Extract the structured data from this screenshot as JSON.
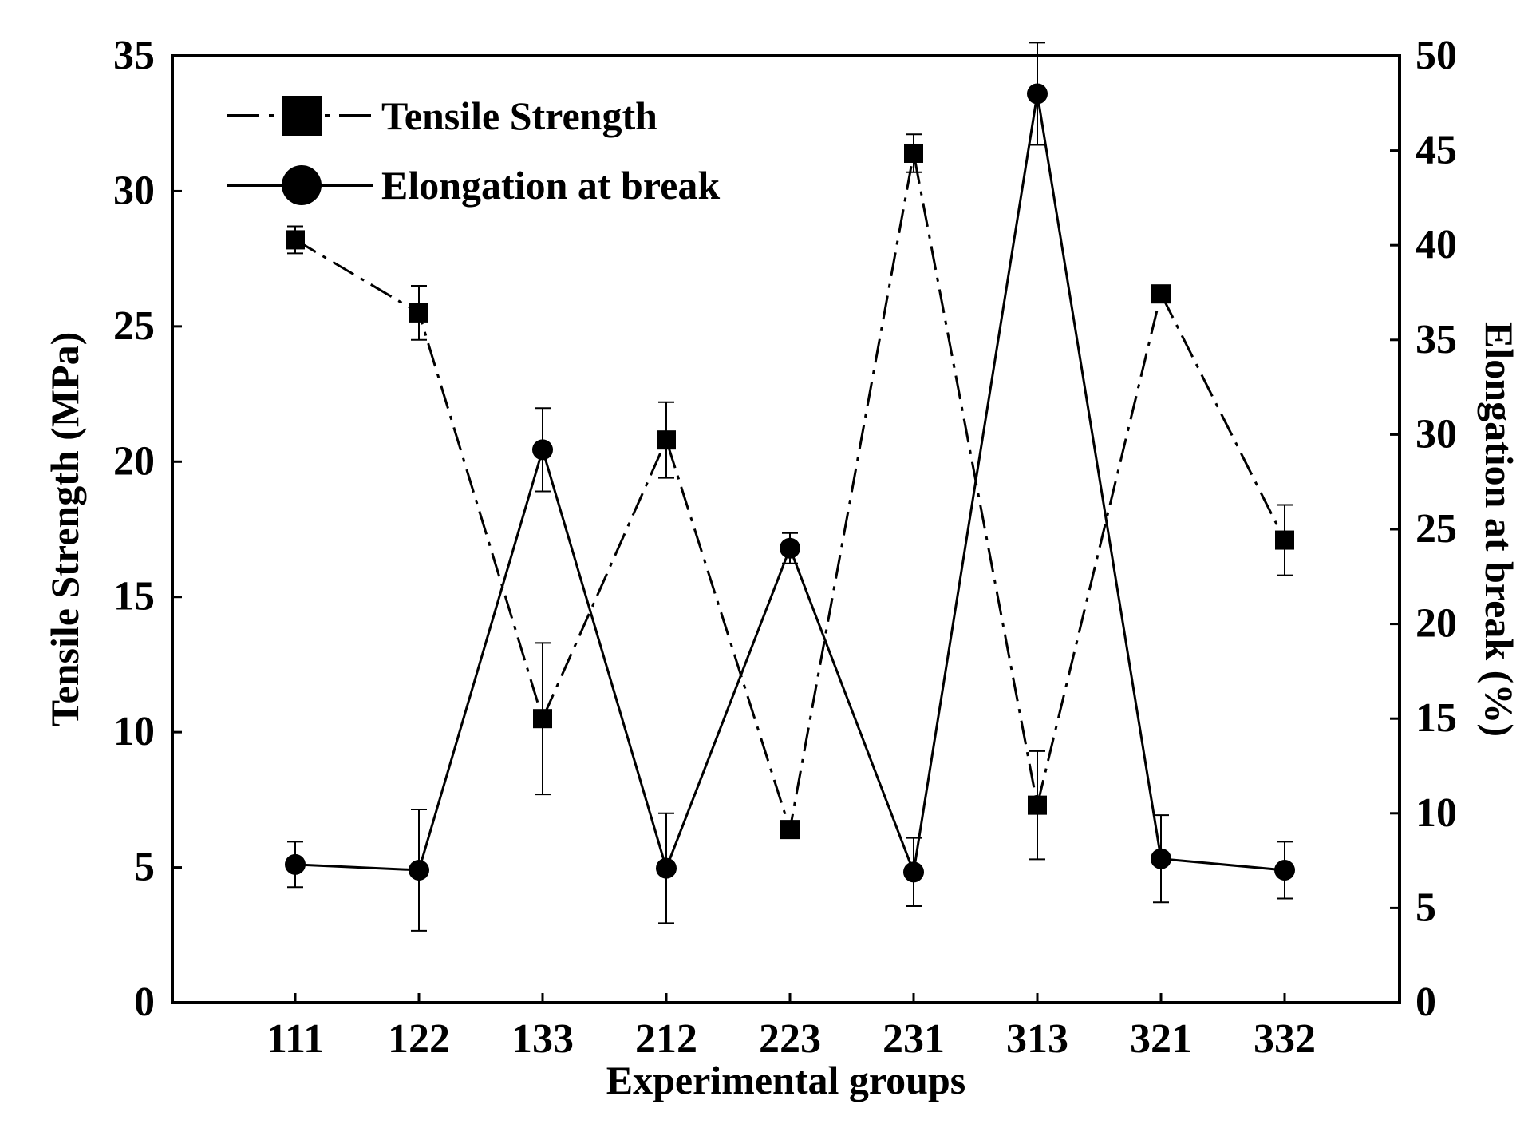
{
  "chart_data": {
    "type": "line",
    "categories": [
      "111",
      "122",
      "133",
      "212",
      "223",
      "231",
      "313",
      "321",
      "332"
    ],
    "xlabel": "Experimental groups",
    "ylabel": "Tensile Strength (MPa)",
    "y2label": "Elongation at break (%)",
    "ylim": [
      0,
      35
    ],
    "y2lim": [
      0,
      50
    ],
    "yticks": [
      0,
      5,
      10,
      15,
      20,
      25,
      30,
      35
    ],
    "y2ticks": [
      0,
      5,
      10,
      15,
      20,
      25,
      30,
      35,
      40,
      45,
      50
    ],
    "legend_position": "top-left",
    "grid": false,
    "series": [
      {
        "name": "Tensile Strength",
        "axis": "left",
        "marker": "square",
        "line_style": "dash-dot",
        "values": [
          28.2,
          25.5,
          10.5,
          20.8,
          6.4,
          31.4,
          7.3,
          26.2,
          17.1
        ],
        "errors": [
          0.5,
          1.0,
          2.8,
          1.4,
          0.3,
          0.7,
          2.0,
          0.3,
          1.3
        ]
      },
      {
        "name": "Elongation at break",
        "axis": "right",
        "marker": "circle",
        "line_style": "solid",
        "values": [
          7.3,
          7.0,
          29.2,
          7.1,
          24.0,
          6.9,
          48.0,
          7.6,
          7.0
        ],
        "errors": [
          1.2,
          3.2,
          2.2,
          2.9,
          0.8,
          1.8,
          2.7,
          2.3,
          1.5
        ]
      }
    ],
    "colors": {
      "line": "#000000",
      "background": "#ffffff"
    }
  }
}
